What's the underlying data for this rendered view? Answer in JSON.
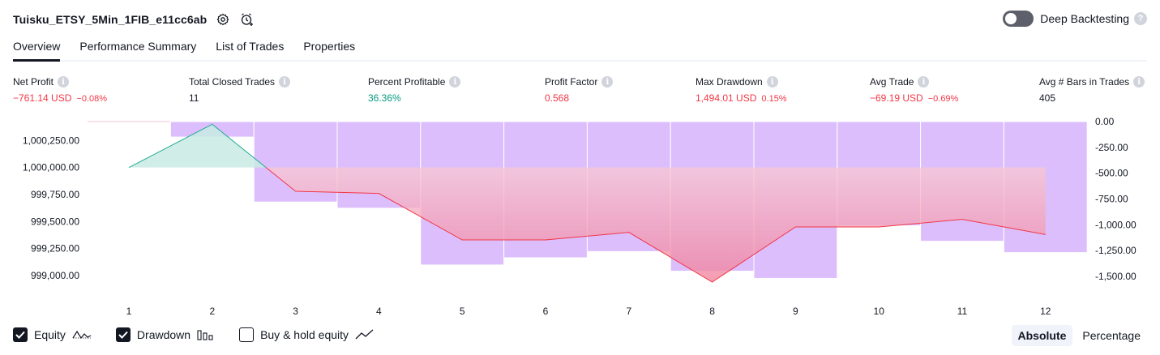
{
  "header": {
    "strategy_name": "Tuisku_ETSY_5Min_1FIB_e11cc6ab",
    "settings_icon": "gear-icon",
    "add_alert_icon": "alarm-clock-add-icon"
  },
  "deep_backtesting": {
    "label": "Deep Backtesting",
    "enabled": false
  },
  "tabs": [
    {
      "label": "Overview",
      "active": true
    },
    {
      "label": "Performance Summary",
      "active": false
    },
    {
      "label": "List of Trades",
      "active": false
    },
    {
      "label": "Properties",
      "active": false
    }
  ],
  "metrics": {
    "net_profit": {
      "label": "Net Profit",
      "value": "−761.14 USD",
      "pct": "−0.08%"
    },
    "total_closed_trades": {
      "label": "Total Closed Trades",
      "value": "11"
    },
    "percent_profitable": {
      "label": "Percent Profitable",
      "value": "36.36%"
    },
    "profit_factor": {
      "label": "Profit Factor",
      "value": "0.568"
    },
    "max_drawdown": {
      "label": "Max Drawdown",
      "value": "1,494.01 USD",
      "pct": "0.15%"
    },
    "avg_trade": {
      "label": "Avg Trade",
      "value": "−69.19 USD",
      "pct": "−0.69%"
    },
    "avg_bars": {
      "label": "Avg # Bars in Trades",
      "value": "405"
    }
  },
  "chart_data": {
    "type": "line",
    "x": [
      1,
      2,
      3,
      4,
      5,
      6,
      7,
      8,
      9,
      10,
      11,
      12
    ],
    "series": [
      {
        "name": "Equity",
        "values": [
          1000000.0,
          1000400.0,
          999780.0,
          999760.0,
          999330.0,
          999330.0,
          999400.0,
          998940.0,
          999450.0,
          999450.0,
          999520.0,
          999380.0
        ]
      },
      {
        "name": "Drawdown",
        "values": [
          0,
          -150,
          -780,
          -840,
          -1390,
          -1320,
          -1260,
          -1450,
          -1520,
          -1010,
          -1160,
          -1270
        ]
      }
    ],
    "left_ticks": [
      "1,000,250.00",
      "1,000,000.00",
      "999,750.00",
      "999,500.00",
      "999,250.00",
      "999,000.00"
    ],
    "right_ticks": [
      "0.00",
      "-250.00",
      "-500.00",
      "-750.00",
      "-1,000.00",
      "-1,250.00",
      "-1,500.00"
    ],
    "x_ticks": [
      "1",
      "2",
      "3",
      "4",
      "5",
      "6",
      "7",
      "8",
      "9",
      "10",
      "11",
      "12"
    ],
    "left_ylim": [
      998850,
      1000425
    ],
    "right_ylim": [
      -1650,
      0
    ],
    "colors": {
      "equity_up": "#22ab94",
      "equity_down": "#f23645",
      "drawdown_bar": "#dcbefc",
      "fill_up": "#c8ebe3",
      "fill_down_top": "#f8c8d4",
      "fill_down_bottom": "#f07e9b"
    }
  },
  "legend": {
    "equity": {
      "label": "Equity",
      "checked": true
    },
    "drawdown": {
      "label": "Drawdown",
      "checked": true
    },
    "buy_hold": {
      "label": "Buy & hold equity",
      "checked": false
    }
  },
  "modes": {
    "absolute": "Absolute",
    "percentage": "Percentage",
    "selected": "absolute"
  }
}
